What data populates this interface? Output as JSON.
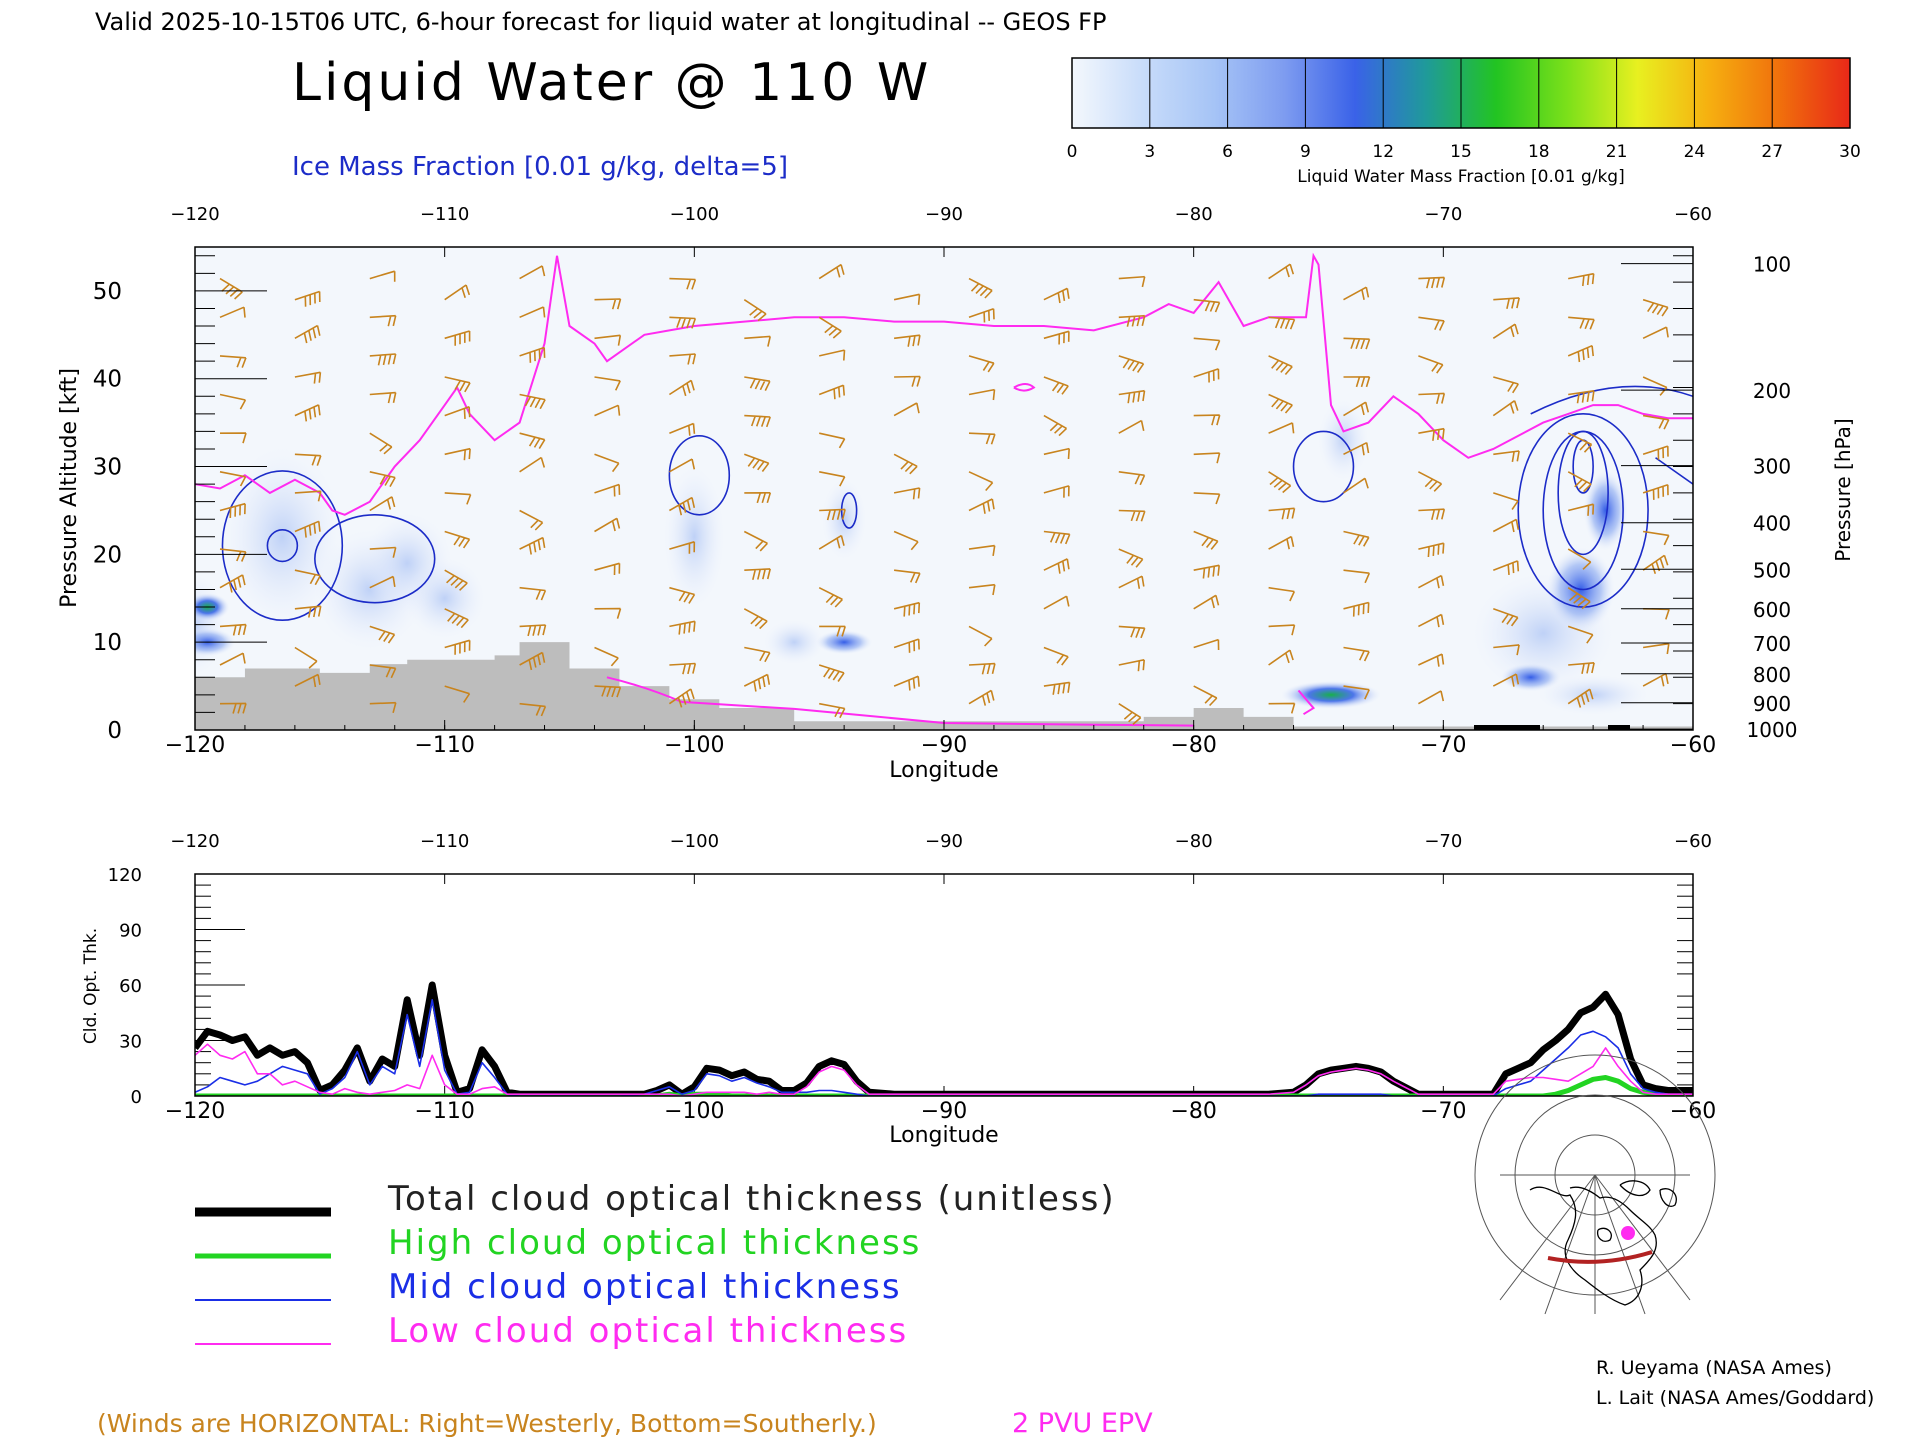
{
  "header": {
    "valid_line": "Valid 2025-10-15T06 UTC, 6-hour forecast for liquid water at longitudinal -- GEOS FP",
    "title": "Liquid Water @ 110 W",
    "ice_label": "Ice Mass Fraction [0.01 g/kg, delta=5]"
  },
  "colorbar": {
    "label": "Liquid Water Mass Fraction [0.01 g/kg]",
    "ticks": [
      "0",
      "3",
      "6",
      "9",
      "12",
      "15",
      "18",
      "21",
      "24",
      "27",
      "30"
    ],
    "colors": [
      "#f4f8fd",
      "#c8dcfa",
      "#a6c4f6",
      "#7e9cf0",
      "#3a62e8",
      "#1f9a9a",
      "#22c422",
      "#7be01a",
      "#e8f020",
      "#f6b010",
      "#f0700c",
      "#e82818"
    ]
  },
  "colors": {
    "wind": "#c8841e",
    "epv": "#ff2bf0",
    "ice": "#1c2cc8",
    "terrain": "#bdbdbd",
    "total": "#000000",
    "high": "#22d422",
    "mid": "#1a2ee6",
    "low": "#ff2bf0"
  },
  "top_axis_ticks": [
    "-120",
    "-110",
    "-100",
    "-90",
    "-80",
    "-70",
    "-60"
  ],
  "cross_section": {
    "xlabel": "Longitude",
    "ylabel_left": "Pressure Altitude [kft]",
    "ylabel_right": "Pressure [hPa]",
    "x_ticks": [
      "-120",
      "-110",
      "-100",
      "-90",
      "-80",
      "-70",
      "-60"
    ],
    "y_ticks_left": [
      "0",
      "10",
      "20",
      "30",
      "40",
      "50"
    ],
    "pressure_ticks": [
      "100",
      "200",
      "300",
      "400",
      "500",
      "600",
      "700",
      "800",
      "900",
      "1000"
    ]
  },
  "optical_panel": {
    "xlabel": "Longitude",
    "ylabel": "Cld. Opt. Thk.",
    "x_ticks": [
      "-120",
      "-110",
      "-100",
      "-90",
      "-80",
      "-70",
      "-60"
    ],
    "y_ticks": [
      "0",
      "30",
      "60",
      "90",
      "120"
    ]
  },
  "legend": {
    "total": "Total cloud optical thickness (unitless)",
    "high": "High cloud optical thickness",
    "mid": "Mid cloud optical thickness",
    "low": "Low cloud optical thickness"
  },
  "credits": {
    "line1": "R. Ueyama (NASA Ames)",
    "line2": "L. Lait (NASA Ames/Goddard)"
  },
  "footer": {
    "winds_note": "(Winds are HORIZONTAL: Right=Westerly, Bottom=Southerly.)",
    "epv_label": "2 PVU EPV"
  },
  "chart_data": [
    {
      "type": "heatmap",
      "title": "Liquid Water @ 110 W",
      "xlabel": "Longitude",
      "ylabel": "Pressure Altitude [kft]",
      "xlim": [
        -120,
        -60
      ],
      "ylim": [
        0,
        55
      ],
      "pressure_levels_hPa": [
        100,
        200,
        300,
        400,
        500,
        600,
        700,
        800,
        900,
        1000
      ],
      "pressure_altitude_kft": [
        53.1,
        38.7,
        30.1,
        23.6,
        18.3,
        13.8,
        9.9,
        6.4,
        3.1,
        0.1
      ],
      "terrain_kft": {
        "x": [
          -120,
          -118,
          -118,
          -115,
          -115,
          -113,
          -113,
          -111.5,
          -111.5,
          -108,
          -108,
          -107,
          -107,
          -105,
          -105,
          -103,
          -103,
          -101,
          -101,
          -99,
          -99,
          -96,
          -96,
          -82,
          -82,
          -80,
          -80,
          -78,
          -78,
          -76,
          -76,
          -60
        ],
        "y": [
          6,
          6,
          7,
          7,
          6.5,
          6.5,
          7.5,
          7.5,
          8,
          8,
          8.5,
          8.5,
          10,
          10,
          7,
          7,
          5,
          5,
          3.5,
          3.5,
          2.5,
          2.5,
          1,
          1,
          1.5,
          1.5,
          2.5,
          2.5,
          1.5,
          1.5,
          0.4,
          0.4
        ]
      },
      "epv_2pvu_kft": {
        "x": [
          -120,
          -119,
          -118,
          -117,
          -116,
          -115,
          -114.5,
          -114,
          -113,
          -112,
          -111,
          -110,
          -109.5,
          -109,
          -108,
          -107,
          -106,
          -105.5,
          -105,
          -104,
          -103.5,
          -103,
          -102,
          -101,
          -100,
          -98,
          -96,
          -94,
          -92,
          -90,
          -88,
          -86,
          -84,
          -82,
          -81,
          -80,
          -79,
          -78,
          -77,
          -76,
          -75.5,
          -75.2,
          -75,
          -74.5,
          -74,
          -73,
          -72,
          -71,
          -70,
          -69,
          -68,
          -66,
          -65,
          -64,
          -63,
          -62,
          -61,
          -60
        ],
        "y": [
          28,
          27.5,
          29,
          27,
          28.5,
          27,
          25,
          24.5,
          26,
          30,
          33,
          37,
          39,
          36,
          33,
          35,
          44,
          54,
          46,
          44,
          42,
          43,
          45,
          45.5,
          46,
          46.5,
          47,
          47,
          46.5,
          46.5,
          46,
          46,
          45.5,
          47,
          48.5,
          47.5,
          51,
          46,
          47,
          47,
          47,
          54,
          53,
          37,
          34,
          35,
          38,
          36,
          33,
          31,
          32,
          35,
          36,
          37,
          37,
          36,
          35.5,
          35.5
        ]
      },
      "liquid_water_0.01g_per_kg": [
        {
          "lon": -119.5,
          "alt_kft": 14,
          "value": 12
        },
        {
          "lon": -119.5,
          "alt_kft": 10,
          "value": 9
        },
        {
          "lon": -74.5,
          "alt_kft": 4,
          "value": 13
        },
        {
          "lon": -64.5,
          "alt_kft": 18,
          "value": 8
        },
        {
          "lon": -94,
          "alt_kft": 10,
          "value": 6
        },
        {
          "lon": -113,
          "alt_kft": 17,
          "value": 3
        },
        {
          "lon": -111,
          "alt_kft": 18,
          "value": 3
        }
      ],
      "ice_contours_0.01g_per_kg": [
        5,
        10,
        15,
        20,
        25
      ]
    },
    {
      "type": "line",
      "xlabel": "Longitude",
      "ylabel": "Cld. Opt. Thk.",
      "xlim": [
        -120,
        -60
      ],
      "ylim": [
        0,
        120
      ],
      "x": [
        -120,
        -119.5,
        -119,
        -118.5,
        -118,
        -117.5,
        -117,
        -116.5,
        -116,
        -115.5,
        -115,
        -114.5,
        -114,
        -113.5,
        -113,
        -112.5,
        -112,
        -111.5,
        -111,
        -110.5,
        -110,
        -109.5,
        -109,
        -108.5,
        -108,
        -107.5,
        -107,
        -106,
        -105,
        -104,
        -103,
        -102,
        -101.5,
        -101,
        -100.5,
        -100,
        -99.5,
        -99,
        -98.5,
        -98,
        -97.5,
        -97,
        -96.5,
        -96,
        -95.5,
        -95,
        -94.5,
        -94,
        -93.5,
        -93,
        -92,
        -90,
        -85,
        -80,
        -77,
        -76,
        -75.5,
        -75,
        -74.5,
        -74,
        -73.5,
        -73,
        -72.5,
        -72,
        -71,
        -70,
        -69,
        -68,
        -67.5,
        -67,
        -66.5,
        -66,
        -65.5,
        -65,
        -64.5,
        -64,
        -63.5,
        -63,
        -62.5,
        -62,
        -61.5,
        -61,
        -60
      ],
      "series": [
        {
          "name": "Total cloud optical thickness (unitless)",
          "values": [
            26,
            35,
            33,
            30,
            32,
            22,
            26,
            22,
            24,
            18,
            3,
            6,
            14,
            26,
            8,
            20,
            16,
            52,
            22,
            60,
            22,
            2,
            4,
            25,
            16,
            2,
            1,
            1,
            1,
            1,
            1,
            1,
            3,
            6,
            1,
            5,
            15,
            14,
            11,
            13,
            9,
            8,
            3,
            3,
            7,
            16,
            19,
            17,
            8,
            2,
            1,
            1,
            1,
            1,
            1,
            2,
            6,
            12,
            14,
            15,
            16,
            15,
            13,
            8,
            1,
            1,
            1,
            1,
            12,
            15,
            18,
            25,
            30,
            36,
            45,
            48,
            55,
            44,
            20,
            6,
            4,
            3,
            3
          ]
        },
        {
          "name": "High cloud optical thickness",
          "values": [
            0,
            0,
            0,
            0,
            0,
            0,
            0,
            0,
            0,
            0,
            0,
            0,
            0,
            0,
            0,
            0,
            0,
            0,
            0,
            0,
            0,
            0,
            0,
            0,
            0,
            0,
            0,
            0,
            0,
            0,
            0,
            0,
            0,
            1,
            0,
            1,
            1,
            1,
            0,
            0,
            0,
            0,
            0,
            0,
            0,
            0,
            0,
            0,
            0,
            0,
            0,
            0,
            0,
            0,
            0,
            0,
            0,
            0,
            0,
            0,
            0,
            0,
            0,
            0,
            0,
            0,
            0,
            0,
            0,
            0,
            0,
            0,
            1,
            3,
            6,
            9,
            10,
            8,
            4,
            2,
            1,
            0,
            0
          ]
        },
        {
          "name": "Mid cloud optical thickness",
          "values": [
            2,
            5,
            10,
            8,
            6,
            8,
            12,
            16,
            14,
            12,
            1,
            4,
            10,
            24,
            6,
            16,
            12,
            44,
            16,
            52,
            14,
            1,
            2,
            18,
            10,
            1,
            0,
            0,
            0,
            0,
            0,
            1,
            3,
            5,
            1,
            3,
            12,
            11,
            8,
            10,
            7,
            5,
            2,
            2,
            2,
            3,
            3,
            2,
            1,
            0,
            0,
            0,
            0,
            0,
            0,
            0,
            0,
            1,
            1,
            1,
            1,
            1,
            1,
            0,
            0,
            0,
            0,
            0,
            4,
            6,
            8,
            14,
            20,
            26,
            33,
            35,
            32,
            26,
            12,
            4,
            2,
            1,
            1
          ]
        },
        {
          "name": "Low cloud optical thickness",
          "values": [
            22,
            28,
            22,
            20,
            24,
            12,
            12,
            6,
            8,
            5,
            2,
            1,
            4,
            2,
            1,
            2,
            3,
            6,
            4,
            22,
            6,
            1,
            1,
            4,
            5,
            1,
            1,
            1,
            1,
            1,
            1,
            1,
            1,
            1,
            0,
            1,
            2,
            2,
            2,
            2,
            1,
            2,
            1,
            1,
            5,
            13,
            16,
            14,
            6,
            1,
            1,
            1,
            1,
            1,
            1,
            2,
            6,
            11,
            13,
            14,
            15,
            14,
            12,
            8,
            1,
            1,
            1,
            1,
            8,
            9,
            10,
            10,
            9,
            8,
            12,
            16,
            26,
            16,
            8,
            2,
            1,
            1,
            1
          ]
        }
      ]
    }
  ]
}
